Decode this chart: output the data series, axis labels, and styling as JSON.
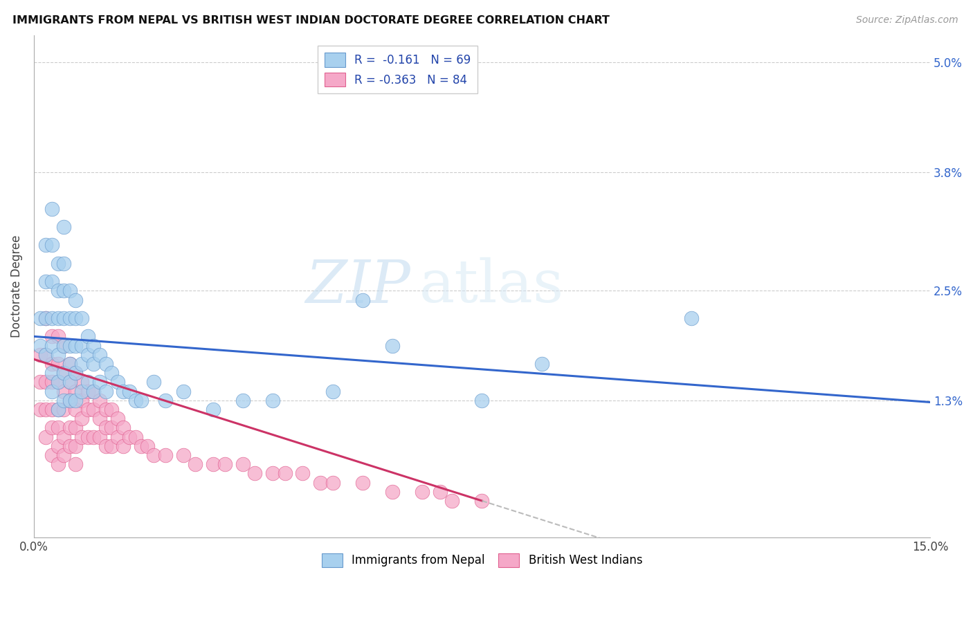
{
  "title": "IMMIGRANTS FROM NEPAL VS BRITISH WEST INDIAN DOCTORATE DEGREE CORRELATION CHART",
  "source": "Source: ZipAtlas.com",
  "ylabel": "Doctorate Degree",
  "xlim": [
    0.0,
    0.15
  ],
  "ylim": [
    -0.002,
    0.053
  ],
  "y_ticks": [
    0.013,
    0.025,
    0.038,
    0.05
  ],
  "y_tick_labels": [
    "1.3%",
    "2.5%",
    "3.8%",
    "5.0%"
  ],
  "watermark_zip": "ZIP",
  "watermark_atlas": "atlas",
  "blue_scatter": "#a8d0ee",
  "blue_edge": "#6699cc",
  "pink_scatter": "#f5a8c8",
  "pink_edge": "#e06090",
  "blue_line": "#3366cc",
  "pink_line": "#cc3366",
  "dash_line": "#bbbbbb",
  "nepal_x": [
    0.001,
    0.001,
    0.002,
    0.002,
    0.002,
    0.002,
    0.003,
    0.003,
    0.003,
    0.003,
    0.003,
    0.003,
    0.003,
    0.004,
    0.004,
    0.004,
    0.004,
    0.004,
    0.004,
    0.005,
    0.005,
    0.005,
    0.005,
    0.005,
    0.005,
    0.005,
    0.006,
    0.006,
    0.006,
    0.006,
    0.006,
    0.006,
    0.007,
    0.007,
    0.007,
    0.007,
    0.007,
    0.008,
    0.008,
    0.008,
    0.008,
    0.009,
    0.009,
    0.009,
    0.01,
    0.01,
    0.01,
    0.011,
    0.011,
    0.012,
    0.012,
    0.013,
    0.014,
    0.015,
    0.016,
    0.017,
    0.018,
    0.02,
    0.022,
    0.025,
    0.03,
    0.035,
    0.04,
    0.05,
    0.055,
    0.06,
    0.075,
    0.085,
    0.11
  ],
  "nepal_y": [
    0.022,
    0.019,
    0.03,
    0.026,
    0.022,
    0.018,
    0.034,
    0.03,
    0.026,
    0.022,
    0.019,
    0.016,
    0.014,
    0.028,
    0.025,
    0.022,
    0.018,
    0.015,
    0.012,
    0.032,
    0.028,
    0.025,
    0.022,
    0.019,
    0.016,
    0.013,
    0.025,
    0.022,
    0.019,
    0.017,
    0.015,
    0.013,
    0.024,
    0.022,
    0.019,
    0.016,
    0.013,
    0.022,
    0.019,
    0.017,
    0.014,
    0.02,
    0.018,
    0.015,
    0.019,
    0.017,
    0.014,
    0.018,
    0.015,
    0.017,
    0.014,
    0.016,
    0.015,
    0.014,
    0.014,
    0.013,
    0.013,
    0.015,
    0.013,
    0.014,
    0.012,
    0.013,
    0.013,
    0.014,
    0.024,
    0.019,
    0.013,
    0.017,
    0.022
  ],
  "bwi_x": [
    0.001,
    0.001,
    0.001,
    0.002,
    0.002,
    0.002,
    0.002,
    0.002,
    0.003,
    0.003,
    0.003,
    0.003,
    0.003,
    0.003,
    0.004,
    0.004,
    0.004,
    0.004,
    0.004,
    0.004,
    0.004,
    0.005,
    0.005,
    0.005,
    0.005,
    0.005,
    0.005,
    0.006,
    0.006,
    0.006,
    0.006,
    0.006,
    0.007,
    0.007,
    0.007,
    0.007,
    0.007,
    0.007,
    0.008,
    0.008,
    0.008,
    0.008,
    0.009,
    0.009,
    0.009,
    0.01,
    0.01,
    0.01,
    0.011,
    0.011,
    0.011,
    0.012,
    0.012,
    0.012,
    0.013,
    0.013,
    0.013,
    0.014,
    0.014,
    0.015,
    0.015,
    0.016,
    0.017,
    0.018,
    0.019,
    0.02,
    0.022,
    0.025,
    0.027,
    0.03,
    0.032,
    0.035,
    0.037,
    0.04,
    0.042,
    0.045,
    0.048,
    0.05,
    0.055,
    0.06,
    0.065,
    0.068,
    0.07,
    0.075
  ],
  "bwi_y": [
    0.018,
    0.015,
    0.012,
    0.022,
    0.018,
    0.015,
    0.012,
    0.009,
    0.02,
    0.017,
    0.015,
    0.012,
    0.01,
    0.007,
    0.02,
    0.017,
    0.015,
    0.012,
    0.01,
    0.008,
    0.006,
    0.019,
    0.016,
    0.014,
    0.012,
    0.009,
    0.007,
    0.017,
    0.015,
    0.013,
    0.01,
    0.008,
    0.016,
    0.014,
    0.012,
    0.01,
    0.008,
    0.006,
    0.015,
    0.013,
    0.011,
    0.009,
    0.014,
    0.012,
    0.009,
    0.014,
    0.012,
    0.009,
    0.013,
    0.011,
    0.009,
    0.012,
    0.01,
    0.008,
    0.012,
    0.01,
    0.008,
    0.011,
    0.009,
    0.01,
    0.008,
    0.009,
    0.009,
    0.008,
    0.008,
    0.007,
    0.007,
    0.007,
    0.006,
    0.006,
    0.006,
    0.006,
    0.005,
    0.005,
    0.005,
    0.005,
    0.004,
    0.004,
    0.004,
    0.003,
    0.003,
    0.003,
    0.002,
    0.002
  ],
  "nepal_trend_x0": 0.0,
  "nepal_trend_y0": 0.02,
  "nepal_trend_x1": 0.15,
  "nepal_trend_y1": 0.0128,
  "bwi_trend_x0": 0.0,
  "bwi_trend_y0": 0.0175,
  "bwi_trend_x1": 0.075,
  "bwi_trend_y1": 0.002
}
